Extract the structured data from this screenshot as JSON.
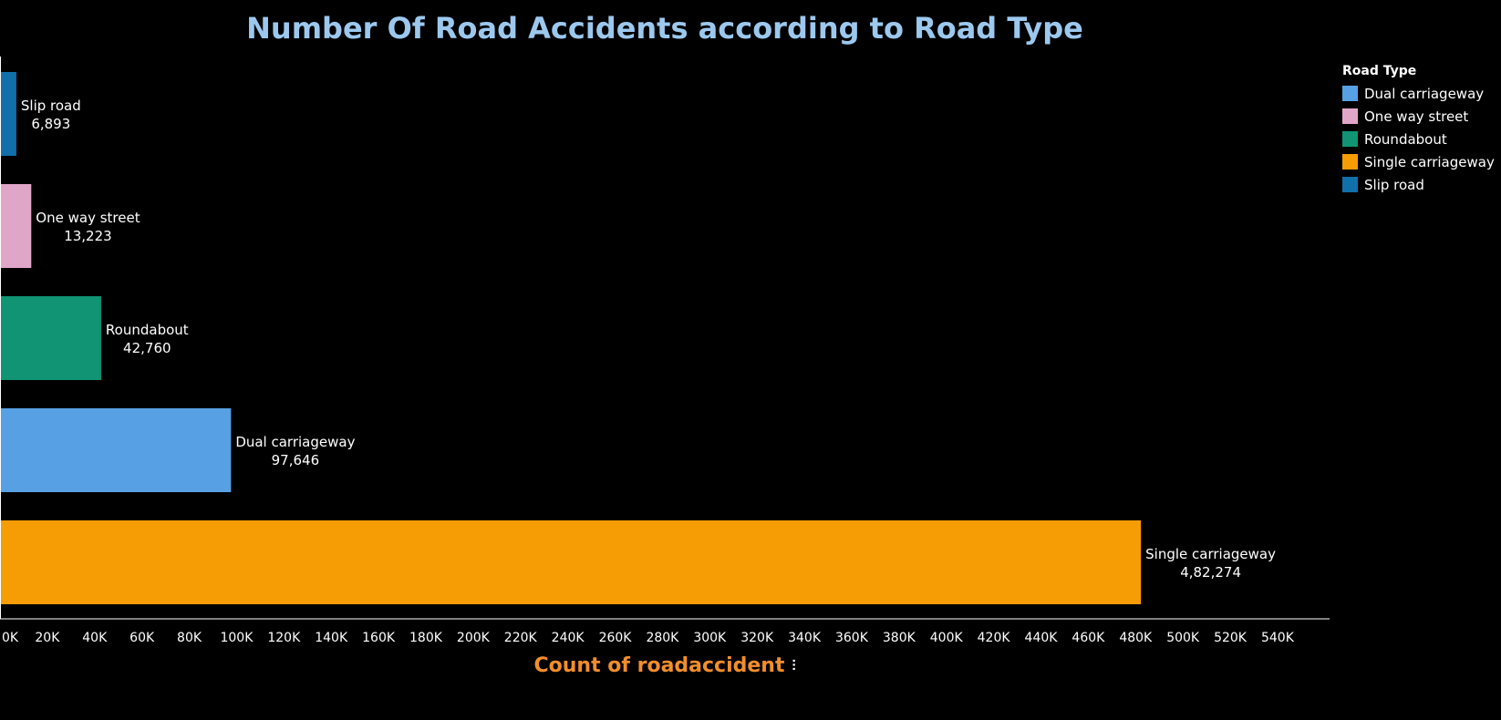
{
  "chart_data": {
    "type": "bar",
    "orientation": "horizontal",
    "title": "Number Of Road Accidents according to Road Type",
    "xlabel": "Count of roadaccident",
    "ylabel": "",
    "categories": [
      "Slip road",
      "One way street",
      "Roundabout",
      "Dual carriageway",
      "Single carriageway"
    ],
    "values": [
      6893,
      13223,
      42760,
      97646,
      482274
    ],
    "value_labels": [
      "6,893",
      "13,223",
      "42,760",
      "97,646",
      "4,82,274"
    ],
    "colors": [
      "#1170aa",
      "#e0a6c8",
      "#109473",
      "#56a0e3",
      "#f69c04"
    ],
    "xlim": [
      0,
      562000
    ],
    "xticks": [
      0,
      20000,
      40000,
      60000,
      80000,
      100000,
      120000,
      140000,
      160000,
      180000,
      200000,
      220000,
      240000,
      260000,
      280000,
      300000,
      320000,
      340000,
      360000,
      380000,
      400000,
      420000,
      440000,
      460000,
      480000,
      500000,
      520000,
      540000
    ],
    "xtick_labels": [
      "0K",
      "20K",
      "40K",
      "60K",
      "80K",
      "100K",
      "120K",
      "140K",
      "160K",
      "180K",
      "200K",
      "220K",
      "240K",
      "260K",
      "280K",
      "300K",
      "320K",
      "340K",
      "360K",
      "380K",
      "400K",
      "420K",
      "440K",
      "460K",
      "480K",
      "500K",
      "520K",
      "540K"
    ],
    "grid": false,
    "legend": {
      "title": "Road Type",
      "position": "right",
      "items": [
        {
          "label": "Dual carriageway",
          "color": "#56a0e3"
        },
        {
          "label": "One way street",
          "color": "#e0a6c8"
        },
        {
          "label": "Roundabout",
          "color": "#109473"
        },
        {
          "label": "Single carriageway",
          "color": "#f69c04"
        },
        {
          "label": "Slip road",
          "color": "#1170aa"
        }
      ]
    }
  },
  "sort_icon": "sort-descending-icon"
}
